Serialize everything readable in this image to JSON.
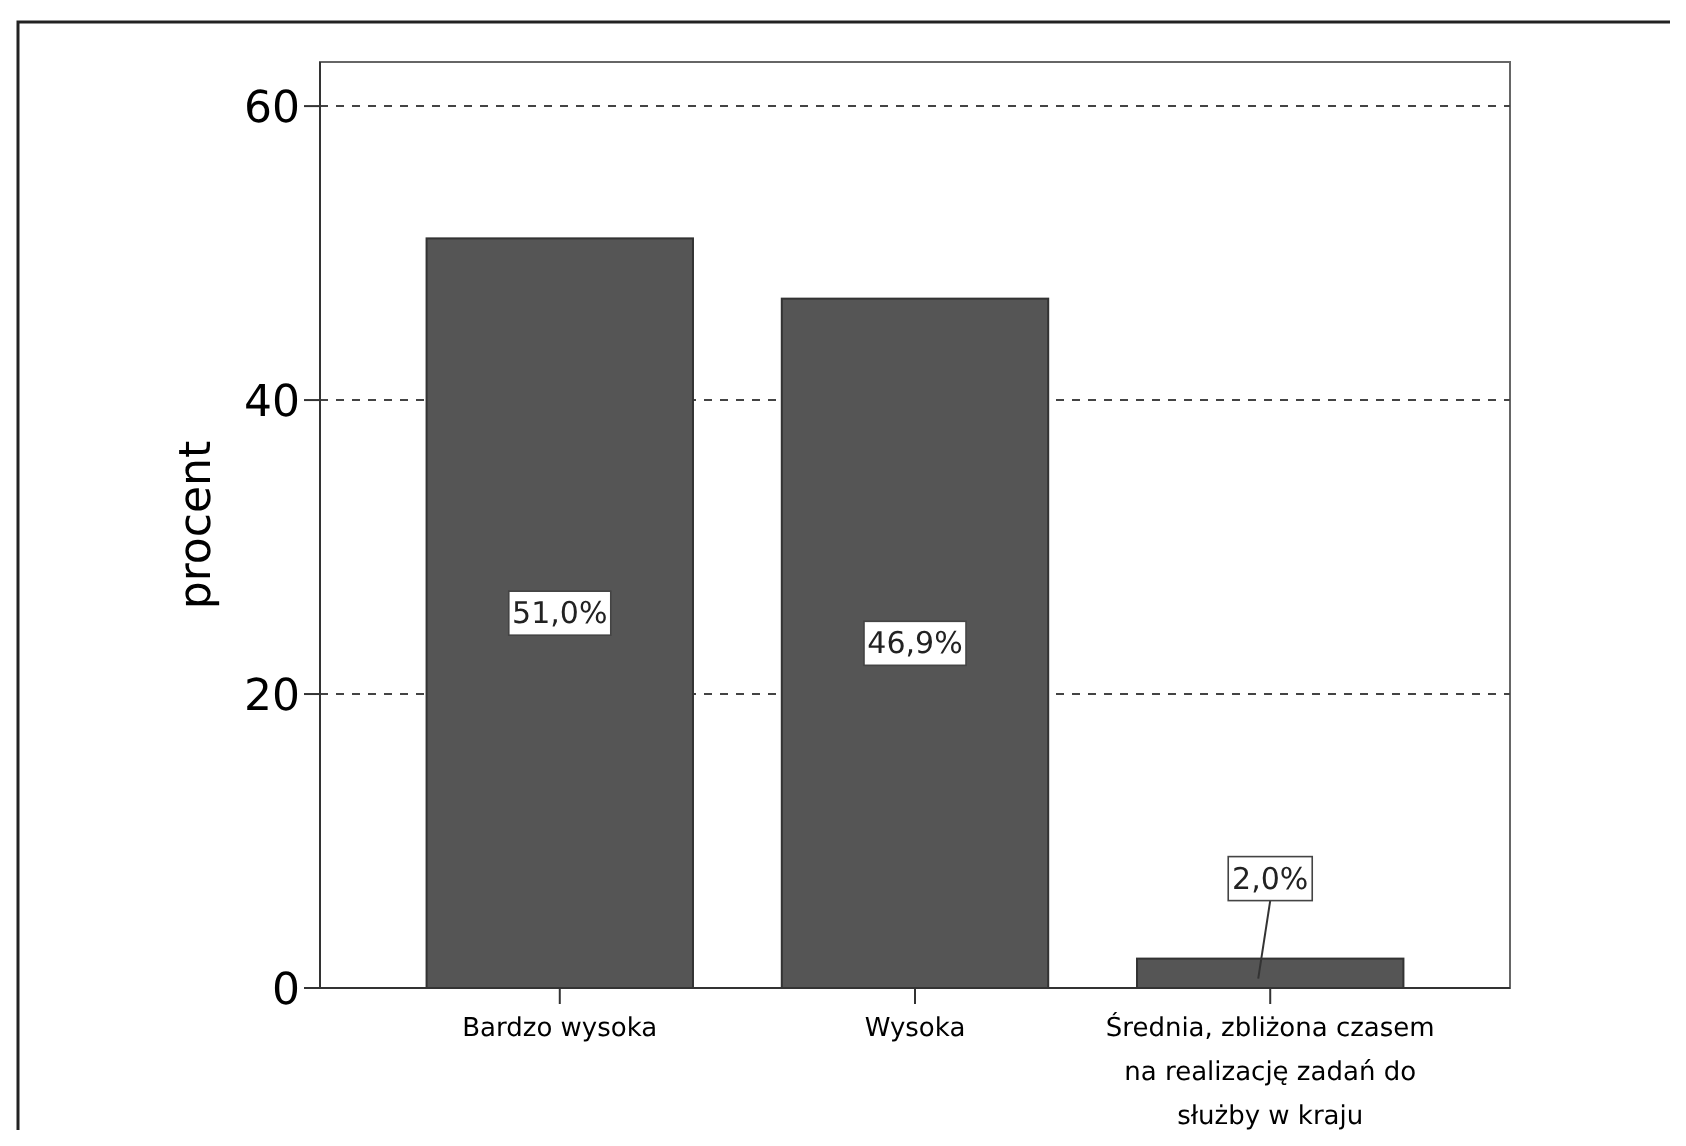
{
  "chart_data": {
    "type": "bar",
    "ylabel": "procent",
    "categories": [
      "Bardzo wysoka",
      "Wysoka",
      "Średnia, zbliżona czasem na realizację zadań do służby w kraju"
    ],
    "values": [
      51.0,
      46.9,
      2.0
    ],
    "value_labels": [
      "51,0%",
      "46,9%",
      "2,0%"
    ],
    "color": "#555555",
    "ylim": [
      0,
      63
    ],
    "yticks": [
      0,
      20,
      40,
      60
    ],
    "grid": "y",
    "line_style": "dashed"
  }
}
